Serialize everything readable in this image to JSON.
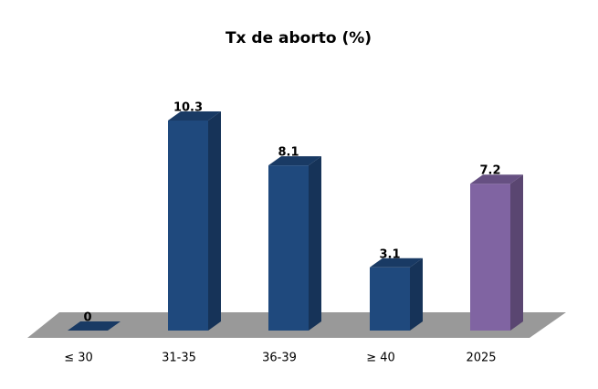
{
  "chart_data": {
    "type": "bar",
    "title": "Tx de aborto (%)",
    "categories": [
      "≤ 30",
      "31-35",
      "36-39",
      "≥ 40",
      "2025"
    ],
    "values": [
      0,
      10.3,
      8.1,
      3.1,
      7.2
    ],
    "colors": [
      "#1f497d",
      "#1f497d",
      "#1f497d",
      "#1f497d",
      "#8064a2"
    ]
  }
}
